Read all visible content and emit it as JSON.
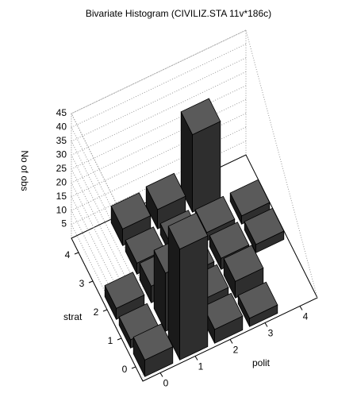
{
  "chart_data": {
    "type": "bar3d",
    "title": "Bivariate Histogram (CIVILIZ.STA 11v*186c)",
    "xlabel": "polit",
    "ylabel": "strat",
    "zlabel": "No of obs",
    "xticks": [
      0,
      1,
      2,
      3,
      4
    ],
    "yticks": [
      0,
      1,
      2,
      3,
      4
    ],
    "zlim": [
      0,
      45
    ],
    "zticks": [
      5,
      10,
      15,
      20,
      25,
      30,
      35,
      40,
      45
    ],
    "values": [
      [
        6,
        40,
        5,
        3,
        null
      ],
      [
        3,
        21,
        5,
        6,
        null
      ],
      [
        4,
        6,
        4,
        4,
        3
      ],
      [
        null,
        4,
        4,
        3,
        3
      ],
      [
        null,
        6,
        7,
        28,
        null
      ]
    ],
    "color": "#5a5a5a"
  }
}
